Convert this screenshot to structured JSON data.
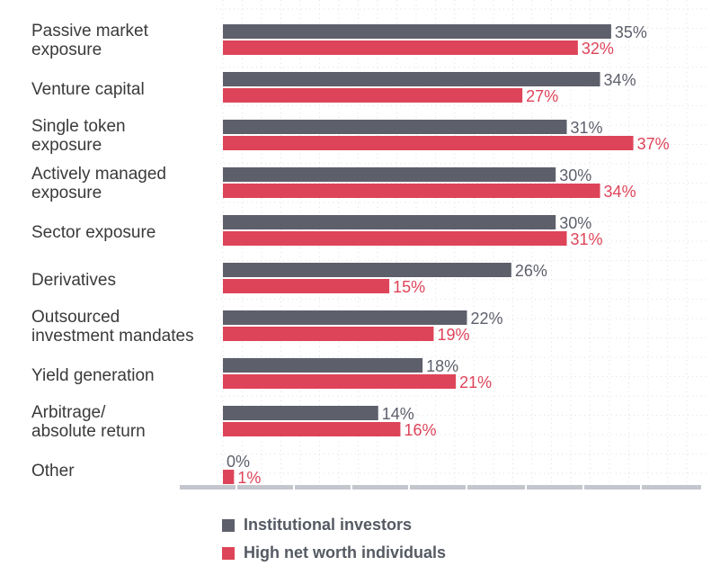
{
  "colors": {
    "institutional": "#5d5f6b",
    "hnw": "#de4459",
    "grid": "#e2e2e2",
    "axis": "#c3c6cc"
  },
  "legend": [
    {
      "label": "Institutional investors",
      "color": "#5d5f6b"
    },
    {
      "label": "High net worth individuals",
      "color": "#de4459"
    }
  ],
  "chart_data": {
    "type": "bar",
    "orientation": "horizontal",
    "categories": [
      [
        "Passive market",
        "exposure"
      ],
      [
        "Venture capital"
      ],
      [
        "Single token",
        "exposure"
      ],
      [
        "Actively managed",
        "exposure"
      ],
      [
        "Sector exposure"
      ],
      [
        "Derivatives"
      ],
      [
        "Outsourced",
        "investment mandates"
      ],
      [
        "Yield generation"
      ],
      [
        "Arbitrage/",
        "absolute return"
      ],
      [
        "Other"
      ]
    ],
    "series": [
      {
        "name": "Institutional investors",
        "values": [
          35,
          34,
          31,
          30,
          30,
          26,
          22,
          18,
          14,
          0
        ]
      },
      {
        "name": "High net worth individuals",
        "values": [
          32,
          27,
          37,
          34,
          31,
          15,
          19,
          21,
          16,
          1
        ]
      }
    ],
    "value_suffix": "%",
    "xlim": [
      0,
      40
    ],
    "legend_position": "bottom"
  }
}
